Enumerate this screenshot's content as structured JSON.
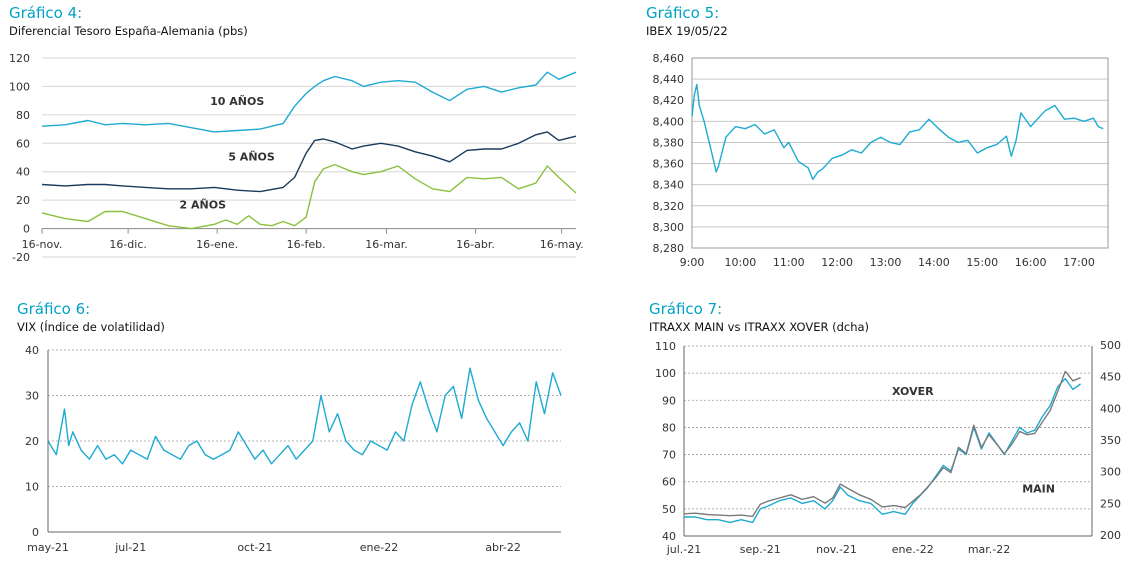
{
  "charts": [
    {
      "id": "g4",
      "heading": "Gráfico 4:",
      "subtitle": "Diferencial Tesoro España-Alemania (pbs)",
      "type": "line",
      "ylim": [
        -20,
        120
      ],
      "yticks": [
        -20,
        0,
        20,
        40,
        60,
        80,
        100,
        120
      ],
      "xlim": [
        0,
        186
      ],
      "xticks": [
        {
          "v": 0,
          "l": "16-nov."
        },
        {
          "v": 30,
          "l": "16-dic."
        },
        {
          "v": 61,
          "l": "16-ene."
        },
        {
          "v": 92,
          "l": "16-feb."
        },
        {
          "v": 120,
          "l": "16-mar."
        },
        {
          "v": 151,
          "l": "16-abr."
        },
        {
          "v": 181,
          "l": "16-may."
        }
      ],
      "series_labels": [
        {
          "text": "10 AÑOS",
          "color": "#1eaad2",
          "x": 68,
          "y": 87
        },
        {
          "text": "5 AÑOS",
          "color": "#1a3a5c",
          "x": 73,
          "y": 48
        },
        {
          "text": "2 AÑOS",
          "color": "#8bc03f",
          "x": 56,
          "y": 14
        }
      ]
    },
    {
      "id": "g5",
      "heading": "Gráfico 5:",
      "subtitle": "IBEX 19/05/22",
      "type": "line",
      "ylim": [
        8280,
        8460
      ],
      "yticks": [
        8280,
        8300,
        8320,
        8340,
        8360,
        8380,
        8400,
        8420,
        8440,
        8460
      ],
      "ytick_labels": [
        "8,280",
        "8,300",
        "8,320",
        "8,340",
        "8,360",
        "8,380",
        "8,400",
        "8,420",
        "8,440",
        "8,460"
      ],
      "xlim": [
        9,
        17.6
      ],
      "xticks": [
        {
          "v": 9,
          "l": "9:00"
        },
        {
          "v": 10,
          "l": "10:00"
        },
        {
          "v": 11,
          "l": "11:00"
        },
        {
          "v": 12,
          "l": "12:00"
        },
        {
          "v": 13,
          "l": "13:00"
        },
        {
          "v": 14,
          "l": "14:00"
        },
        {
          "v": 15,
          "l": "15:00"
        },
        {
          "v": 16,
          "l": "16:00"
        },
        {
          "v": 17,
          "l": "17:00"
        }
      ]
    },
    {
      "id": "g6",
      "heading": "Gráfico 6:",
      "subtitle": "VIX (Índice de volatilidad)",
      "type": "line",
      "ylim": [
        0,
        40
      ],
      "yticks": [
        0,
        10,
        20,
        30,
        40
      ],
      "xlim": [
        0,
        12.4
      ],
      "xticks": [
        {
          "v": 0,
          "l": "may-21"
        },
        {
          "v": 2,
          "l": "jul-21"
        },
        {
          "v": 5,
          "l": "oct-21"
        },
        {
          "v": 8,
          "l": "ene-22"
        },
        {
          "v": 11,
          "l": "abr-22"
        }
      ]
    },
    {
      "id": "g7",
      "heading": "Gráfico 7:",
      "subtitle": "ITRAXX MAIN vs ITRAXX XOVER (dcha)",
      "type": "line",
      "ylim": [
        40,
        110
      ],
      "yticks": [
        40,
        50,
        60,
        70,
        80,
        90,
        100,
        110
      ],
      "y2lim": [
        200,
        500
      ],
      "y2ticks": [
        200,
        250,
        300,
        350,
        400,
        450,
        500
      ],
      "xlim": [
        0,
        10.7
      ],
      "xticks": [
        {
          "v": 0,
          "l": "jul.-21"
        },
        {
          "v": 2,
          "l": "sep.-21"
        },
        {
          "v": 4,
          "l": "nov.-21"
        },
        {
          "v": 6,
          "l": "ene.-22"
        },
        {
          "v": 8,
          "l": "mar.-22"
        }
      ],
      "series_labels": [
        {
          "text": "XOVER",
          "color": "#7a7a7a",
          "x": 6.0,
          "y": 92
        },
        {
          "text": "MAIN",
          "color": "#1eaad2",
          "x": 9.3,
          "y": 56
        }
      ]
    }
  ],
  "chart_data": [
    {
      "type": "line",
      "title": "Diferencial Tesoro España-Alemania (pbs)",
      "x_unit": "days since 16-nov.",
      "series": [
        {
          "name": "10 AÑOS",
          "color": "#1eaad2",
          "x": [
            0,
            8,
            16,
            22,
            28,
            36,
            44,
            52,
            60,
            68,
            76,
            84,
            88,
            92,
            95,
            98,
            102,
            108,
            112,
            118,
            124,
            130,
            136,
            142,
            148,
            154,
            160,
            166,
            172,
            176,
            180,
            186
          ],
          "y": [
            72,
            73,
            76,
            73,
            74,
            73,
            74,
            71,
            68,
            69,
            70,
            74,
            86,
            95,
            100,
            104,
            107,
            104,
            100,
            103,
            104,
            103,
            96,
            90,
            98,
            100,
            96,
            99,
            101,
            110,
            105,
            110
          ]
        },
        {
          "name": "5 AÑOS",
          "color": "#1a3a5c",
          "x": [
            0,
            8,
            16,
            22,
            28,
            36,
            44,
            52,
            60,
            68,
            76,
            84,
            88,
            92,
            95,
            98,
            102,
            108,
            112,
            118,
            124,
            130,
            136,
            142,
            148,
            154,
            160,
            166,
            172,
            176,
            180,
            186
          ],
          "y": [
            31,
            30,
            31,
            31,
            30,
            29,
            28,
            28,
            29,
            27,
            26,
            29,
            36,
            53,
            62,
            63,
            61,
            56,
            58,
            60,
            58,
            54,
            51,
            47,
            55,
            56,
            56,
            60,
            66,
            68,
            62,
            65
          ]
        },
        {
          "name": "2 AÑOS",
          "color": "#8bc03f",
          "x": [
            0,
            8,
            16,
            22,
            28,
            36,
            44,
            52,
            60,
            64,
            68,
            72,
            76,
            80,
            84,
            88,
            92,
            95,
            98,
            102,
            108,
            112,
            118,
            124,
            130,
            136,
            142,
            148,
            154,
            160,
            166,
            172,
            176,
            180,
            186
          ],
          "y": [
            11,
            7,
            5,
            12,
            12,
            7,
            2,
            0,
            3,
            6,
            3,
            9,
            3,
            2,
            5,
            2,
            8,
            33,
            42,
            45,
            40,
            38,
            40,
            44,
            35,
            28,
            26,
            36,
            35,
            36,
            28,
            32,
            44,
            36,
            25
          ]
        }
      ]
    },
    {
      "type": "line",
      "title": "IBEX 19/05/22",
      "series": [
        {
          "name": "IBEX",
          "color": "#1eaad2",
          "x": [
            9.0,
            9.05,
            9.1,
            9.15,
            9.25,
            9.4,
            9.5,
            9.55,
            9.7,
            9.9,
            10.1,
            10.3,
            10.5,
            10.7,
            10.9,
            11.0,
            11.2,
            11.4,
            11.5,
            11.6,
            11.7,
            11.9,
            12.1,
            12.3,
            12.5,
            12.7,
            12.9,
            13.1,
            13.3,
            13.5,
            13.7,
            13.9,
            14.1,
            14.3,
            14.5,
            14.7,
            14.9,
            15.1,
            15.3,
            15.5,
            15.6,
            15.7,
            15.8,
            16.0,
            16.1,
            16.3,
            16.5,
            16.7,
            16.9,
            17.1,
            17.3,
            17.4,
            17.5
          ],
          "y": [
            8405,
            8425,
            8435,
            8415,
            8400,
            8372,
            8352,
            8358,
            8385,
            8395,
            8393,
            8397,
            8388,
            8392,
            8375,
            8380,
            8362,
            8356,
            8345,
            8352,
            8355,
            8365,
            8368,
            8373,
            8370,
            8380,
            8385,
            8380,
            8378,
            8390,
            8392,
            8402,
            8393,
            8385,
            8380,
            8382,
            8370,
            8375,
            8378,
            8386,
            8367,
            8382,
            8408,
            8395,
            8400,
            8410,
            8415,
            8402,
            8403,
            8400,
            8403,
            8395,
            8393
          ]
        }
      ]
    },
    {
      "type": "line",
      "title": "VIX (Índice de volatilidad)",
      "x_unit": "months since may-21",
      "series": [
        {
          "name": "VIX",
          "color": "#1eaad2",
          "x": [
            0,
            0.2,
            0.4,
            0.5,
            0.6,
            0.8,
            1.0,
            1.2,
            1.4,
            1.6,
            1.8,
            2.0,
            2.2,
            2.4,
            2.6,
            2.8,
            3.0,
            3.2,
            3.4,
            3.6,
            3.8,
            4.0,
            4.2,
            4.4,
            4.6,
            4.8,
            5.0,
            5.2,
            5.4,
            5.6,
            5.8,
            6.0,
            6.2,
            6.4,
            6.6,
            6.8,
            7.0,
            7.2,
            7.4,
            7.6,
            7.8,
            8.0,
            8.2,
            8.4,
            8.6,
            8.8,
            9.0,
            9.2,
            9.4,
            9.6,
            9.8,
            10.0,
            10.2,
            10.4,
            10.6,
            10.8,
            11.0,
            11.2,
            11.4,
            11.6,
            11.8,
            12.0,
            12.2,
            12.4
          ],
          "y": [
            20,
            17,
            27,
            19,
            22,
            18,
            16,
            19,
            16,
            17,
            15,
            18,
            17,
            16,
            21,
            18,
            17,
            16,
            19,
            20,
            17,
            16,
            17,
            18,
            22,
            19,
            16,
            18,
            15,
            17,
            19,
            16,
            18,
            20,
            30,
            22,
            26,
            20,
            18,
            17,
            20,
            19,
            18,
            22,
            20,
            28,
            33,
            27,
            22,
            30,
            32,
            25,
            36,
            29,
            25,
            22,
            19,
            22,
            24,
            20,
            33,
            26,
            35,
            30
          ]
        }
      ]
    },
    {
      "type": "line",
      "title": "ITRAXX MAIN vs ITRAXX XOVER (dcha)",
      "x_unit": "months since jul.-21",
      "series": [
        {
          "name": "MAIN",
          "color": "#1eaad2",
          "axis": "left",
          "x": [
            0,
            0.3,
            0.6,
            0.9,
            1.2,
            1.5,
            1.8,
            2.0,
            2.2,
            2.5,
            2.8,
            3.1,
            3.4,
            3.7,
            3.9,
            4.1,
            4.3,
            4.6,
            4.9,
            5.2,
            5.5,
            5.8,
            6.0,
            6.2,
            6.4,
            6.6,
            6.8,
            7.0,
            7.2,
            7.4,
            7.6,
            7.8,
            8.0,
            8.2,
            8.4,
            8.6,
            8.8,
            9.0,
            9.2,
            9.4,
            9.6,
            9.8,
            10.0,
            10.2,
            10.4
          ],
          "y": [
            47,
            47,
            46,
            46,
            45,
            46,
            45,
            50,
            51,
            53,
            54,
            52,
            53,
            50,
            53,
            58,
            55,
            53,
            52,
            48,
            49,
            48,
            52,
            55,
            58,
            62,
            66,
            64,
            72,
            70,
            80,
            72,
            78,
            74,
            70,
            75,
            80,
            78,
            79,
            84,
            88,
            95,
            98,
            94,
            96
          ]
        },
        {
          "name": "XOVER",
          "color": "#7a7a7a",
          "axis": "right",
          "x": [
            0,
            0.3,
            0.6,
            0.9,
            1.2,
            1.5,
            1.8,
            2.0,
            2.2,
            2.5,
            2.8,
            3.1,
            3.4,
            3.7,
            3.9,
            4.1,
            4.3,
            4.6,
            4.9,
            5.2,
            5.5,
            5.8,
            6.0,
            6.2,
            6.4,
            6.6,
            6.8,
            7.0,
            7.2,
            7.4,
            7.6,
            7.8,
            8.0,
            8.2,
            8.4,
            8.6,
            8.8,
            9.0,
            9.2,
            9.4,
            9.6,
            9.8,
            10.0,
            10.2,
            10.4
          ],
          "y": [
            235,
            236,
            234,
            233,
            232,
            233,
            231,
            250,
            255,
            260,
            265,
            258,
            262,
            252,
            260,
            282,
            275,
            265,
            258,
            246,
            248,
            245,
            255,
            265,
            278,
            292,
            308,
            300,
            340,
            330,
            375,
            340,
            360,
            345,
            330,
            345,
            365,
            360,
            362,
            380,
            398,
            428,
            460,
            445,
            450
          ]
        }
      ]
    }
  ]
}
